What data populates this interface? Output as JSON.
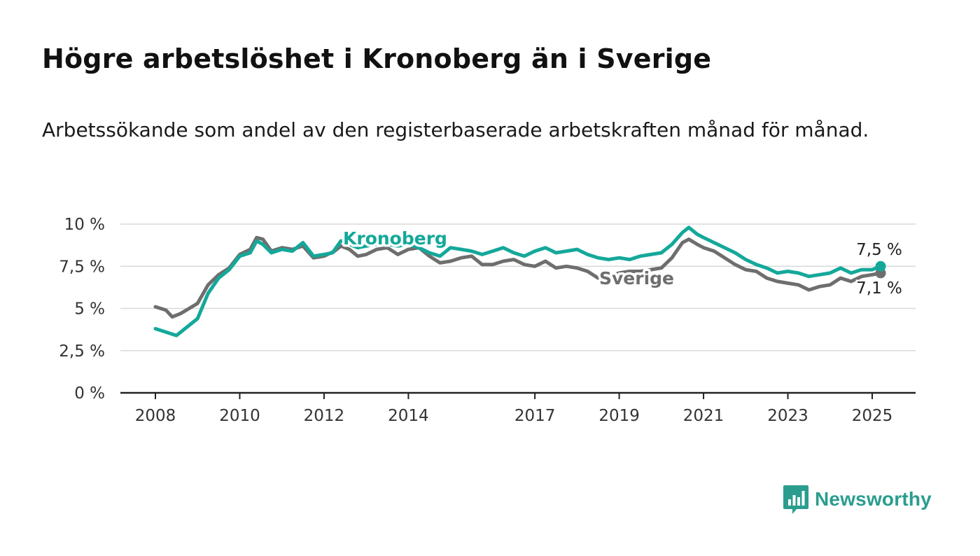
{
  "title": "Högre arbetslöshet i Kronoberg än i Sverige",
  "subtitle": "Arbetssökande som andel av den registerbaserade arbetskraften månad för månad.",
  "brand": {
    "name": "Newsworthy",
    "color": "#2a9d8f",
    "icon": "bar-chart-speech-bubble-icon"
  },
  "chart_data": {
    "type": "line",
    "xlim": [
      2007.75,
      2025.9
    ],
    "ylim": [
      0,
      10
    ],
    "y_ticks": [
      0,
      2.5,
      5,
      7.5,
      10
    ],
    "y_tick_labels": [
      "0 %",
      "2,5 %",
      "5 %",
      "7,5 %",
      "10 %"
    ],
    "x_ticks": [
      2008,
      2010,
      2012,
      2014,
      2017,
      2019,
      2021,
      2023,
      2025
    ],
    "x_tick_labels": [
      "2008",
      "2010",
      "2012",
      "2014",
      "2017",
      "2019",
      "2021",
      "2023",
      "2025"
    ],
    "grid": true,
    "legend": "inline labels",
    "series": [
      {
        "name": "Kronoberg",
        "color": "#14a89a",
        "end_label": "7,5 %",
        "points": [
          [
            2008.0,
            3.8
          ],
          [
            2008.25,
            3.6
          ],
          [
            2008.5,
            3.4
          ],
          [
            2008.75,
            3.9
          ],
          [
            2009.0,
            4.4
          ],
          [
            2009.25,
            5.9
          ],
          [
            2009.5,
            6.8
          ],
          [
            2009.75,
            7.3
          ],
          [
            2010.0,
            8.1
          ],
          [
            2010.25,
            8.3
          ],
          [
            2010.4,
            9.0
          ],
          [
            2010.55,
            8.8
          ],
          [
            2010.75,
            8.3
          ],
          [
            2011.0,
            8.5
          ],
          [
            2011.25,
            8.4
          ],
          [
            2011.5,
            8.9
          ],
          [
            2011.75,
            8.1
          ],
          [
            2012.0,
            8.2
          ],
          [
            2012.2,
            8.3
          ],
          [
            2012.4,
            9.0
          ],
          [
            2012.6,
            8.8
          ],
          [
            2012.8,
            8.6
          ],
          [
            2013.0,
            8.7
          ],
          [
            2013.25,
            8.8
          ],
          [
            2013.5,
            8.8
          ],
          [
            2013.75,
            8.7
          ],
          [
            2014.0,
            8.8
          ],
          [
            2014.25,
            8.6
          ],
          [
            2014.5,
            8.3
          ],
          [
            2014.75,
            8.1
          ],
          [
            2015.0,
            8.6
          ],
          [
            2015.25,
            8.5
          ],
          [
            2015.5,
            8.4
          ],
          [
            2015.75,
            8.2
          ],
          [
            2016.0,
            8.4
          ],
          [
            2016.25,
            8.6
          ],
          [
            2016.5,
            8.3
          ],
          [
            2016.75,
            8.1
          ],
          [
            2017.0,
            8.4
          ],
          [
            2017.25,
            8.6
          ],
          [
            2017.5,
            8.3
          ],
          [
            2017.75,
            8.4
          ],
          [
            2018.0,
            8.5
          ],
          [
            2018.25,
            8.2
          ],
          [
            2018.5,
            8.0
          ],
          [
            2018.75,
            7.9
          ],
          [
            2019.0,
            8.0
          ],
          [
            2019.25,
            7.9
          ],
          [
            2019.5,
            8.1
          ],
          [
            2019.75,
            8.2
          ],
          [
            2020.0,
            8.3
          ],
          [
            2020.25,
            8.8
          ],
          [
            2020.5,
            9.5
          ],
          [
            2020.65,
            9.8
          ],
          [
            2020.85,
            9.4
          ],
          [
            2021.0,
            9.2
          ],
          [
            2021.25,
            8.9
          ],
          [
            2021.5,
            8.6
          ],
          [
            2021.75,
            8.3
          ],
          [
            2022.0,
            7.9
          ],
          [
            2022.25,
            7.6
          ],
          [
            2022.5,
            7.4
          ],
          [
            2022.75,
            7.1
          ],
          [
            2023.0,
            7.2
          ],
          [
            2023.25,
            7.1
          ],
          [
            2023.5,
            6.9
          ],
          [
            2023.75,
            7.0
          ],
          [
            2024.0,
            7.1
          ],
          [
            2024.25,
            7.4
          ],
          [
            2024.5,
            7.1
          ],
          [
            2024.75,
            7.3
          ],
          [
            2025.0,
            7.3
          ],
          [
            2025.2,
            7.5
          ]
        ]
      },
      {
        "name": "Sverige",
        "color": "#6e6e6e",
        "end_label": "7,1 %",
        "points": [
          [
            2008.0,
            5.1
          ],
          [
            2008.25,
            4.9
          ],
          [
            2008.4,
            4.5
          ],
          [
            2008.6,
            4.7
          ],
          [
            2008.8,
            5.0
          ],
          [
            2009.0,
            5.3
          ],
          [
            2009.25,
            6.4
          ],
          [
            2009.5,
            7.0
          ],
          [
            2009.75,
            7.4
          ],
          [
            2010.0,
            8.2
          ],
          [
            2010.25,
            8.5
          ],
          [
            2010.4,
            9.2
          ],
          [
            2010.55,
            9.1
          ],
          [
            2010.75,
            8.4
          ],
          [
            2011.0,
            8.6
          ],
          [
            2011.25,
            8.5
          ],
          [
            2011.5,
            8.7
          ],
          [
            2011.75,
            8.0
          ],
          [
            2012.0,
            8.1
          ],
          [
            2012.25,
            8.4
          ],
          [
            2012.4,
            8.7
          ],
          [
            2012.6,
            8.5
          ],
          [
            2012.8,
            8.1
          ],
          [
            2013.0,
            8.2
          ],
          [
            2013.25,
            8.5
          ],
          [
            2013.5,
            8.6
          ],
          [
            2013.75,
            8.2
          ],
          [
            2014.0,
            8.5
          ],
          [
            2014.25,
            8.6
          ],
          [
            2014.5,
            8.1
          ],
          [
            2014.75,
            7.7
          ],
          [
            2015.0,
            7.8
          ],
          [
            2015.25,
            8.0
          ],
          [
            2015.5,
            8.1
          ],
          [
            2015.75,
            7.6
          ],
          [
            2016.0,
            7.6
          ],
          [
            2016.25,
            7.8
          ],
          [
            2016.5,
            7.9
          ],
          [
            2016.75,
            7.6
          ],
          [
            2017.0,
            7.5
          ],
          [
            2017.25,
            7.8
          ],
          [
            2017.5,
            7.4
          ],
          [
            2017.75,
            7.5
          ],
          [
            2018.0,
            7.4
          ],
          [
            2018.25,
            7.2
          ],
          [
            2018.5,
            6.8
          ],
          [
            2018.75,
            6.9
          ],
          [
            2019.0,
            7.1
          ],
          [
            2019.25,
            7.2
          ],
          [
            2019.5,
            7.2
          ],
          [
            2019.75,
            7.3
          ],
          [
            2020.0,
            7.4
          ],
          [
            2020.25,
            8.0
          ],
          [
            2020.5,
            8.9
          ],
          [
            2020.65,
            9.1
          ],
          [
            2020.85,
            8.8
          ],
          [
            2021.0,
            8.6
          ],
          [
            2021.25,
            8.4
          ],
          [
            2021.5,
            8.0
          ],
          [
            2021.75,
            7.6
          ],
          [
            2022.0,
            7.3
          ],
          [
            2022.25,
            7.2
          ],
          [
            2022.5,
            6.8
          ],
          [
            2022.75,
            6.6
          ],
          [
            2023.0,
            6.5
          ],
          [
            2023.25,
            6.4
          ],
          [
            2023.5,
            6.1
          ],
          [
            2023.75,
            6.3
          ],
          [
            2024.0,
            6.4
          ],
          [
            2024.25,
            6.8
          ],
          [
            2024.5,
            6.6
          ],
          [
            2024.75,
            6.9
          ],
          [
            2025.0,
            7.0
          ],
          [
            2025.2,
            7.1
          ]
        ]
      }
    ]
  }
}
